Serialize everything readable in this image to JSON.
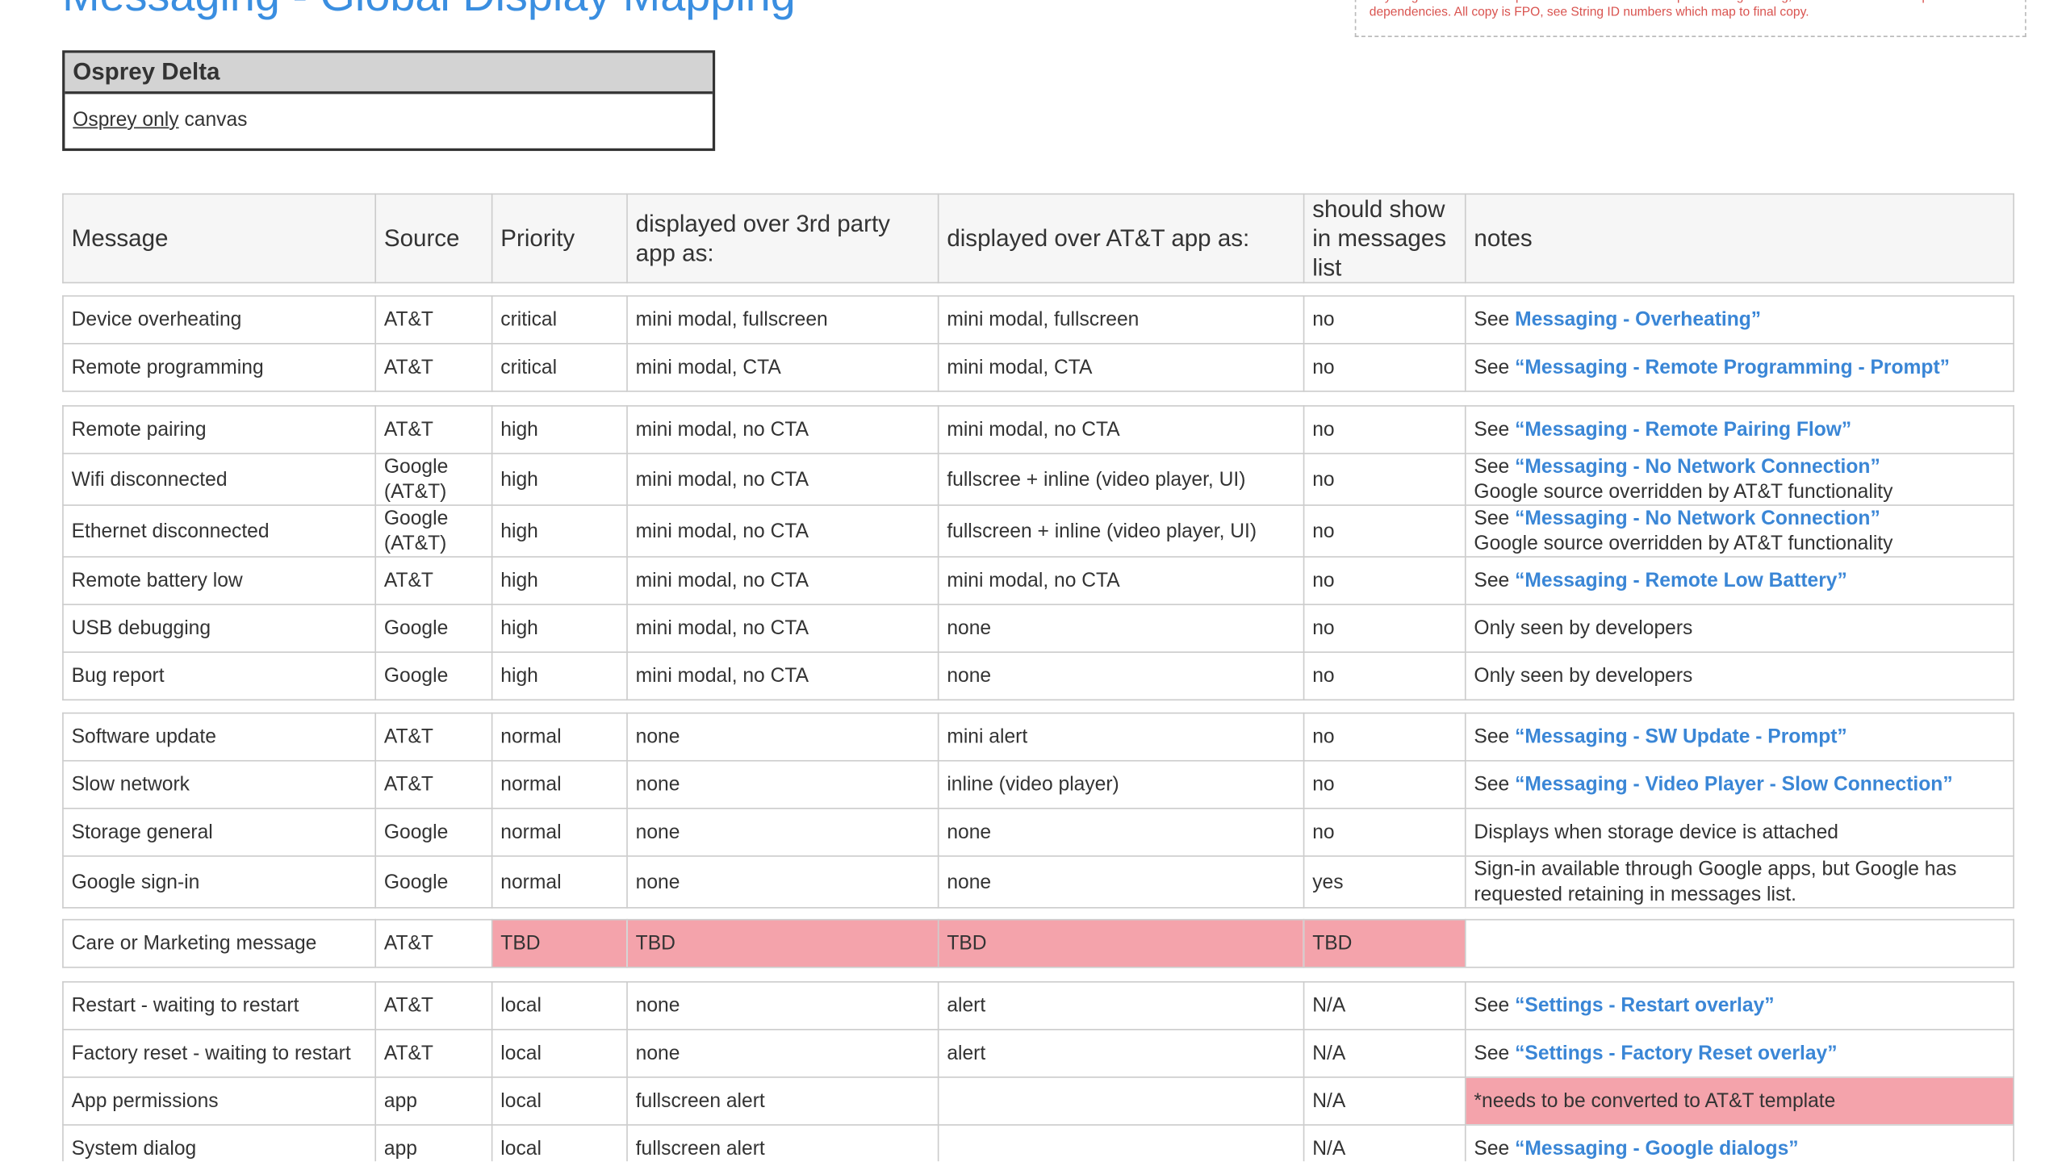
{
  "header": {
    "title": "Messaging - Global Display Mapping",
    "note": "Anything noted in RED requires further discussion with product/engineering, is covered in a future sprint or has dependencies. All copy is FPO, see String ID numbers which map to final copy."
  },
  "delta": {
    "title": "Osprey Delta",
    "underlined": "Osprey only",
    "rest": "canvas"
  },
  "table": {
    "columns": [
      "Message",
      "Source",
      "Priority",
      "displayed over 3rd party app as:",
      "displayed over AT&T app as:",
      "should show in messages list",
      "notes"
    ],
    "highlight_color": "#f4a3ab",
    "groups": [
      [
        {
          "cells": [
            "Device overheating",
            "AT&T",
            "critical",
            "mini modal, fullscreen",
            "mini modal, fullscreen",
            "no"
          ],
          "note": {
            "prefix": "See",
            "link": "Messaging - Overheating”"
          }
        },
        {
          "cells": [
            "Remote programming",
            "AT&T",
            "critical",
            "mini modal, CTA",
            "mini modal, CTA",
            "no"
          ],
          "note": {
            "prefix": "See",
            "link": "“Messaging - Remote Programming - Prompt”"
          }
        }
      ],
      [
        {
          "cells": [
            "Remote pairing",
            "AT&T",
            "high",
            "mini modal, no CTA",
            "mini modal, no CTA",
            "no"
          ],
          "note": {
            "prefix": "See",
            "link": "“Messaging - Remote Pairing Flow”"
          }
        },
        {
          "cells": [
            "Wifi disconnected",
            "Google (AT&T)",
            "high",
            "mini modal, no CTA",
            "fullscree + inline (video player, UI)",
            "no"
          ],
          "note": {
            "prefix": "See",
            "link": "“Messaging - No Network Connection”",
            "line2": "Google source overridden by AT&T functionality"
          }
        },
        {
          "cells": [
            "Ethernet disconnected",
            "Google (AT&T)",
            "high",
            "mini modal, no CTA",
            "fullscreen + inline (video player, UI)",
            "no"
          ],
          "note": {
            "prefix": "See",
            "link": "“Messaging - No Network Connection”",
            "line2": "Google source overridden by AT&T functionality"
          }
        },
        {
          "cells": [
            "Remote battery low",
            "AT&T",
            "high",
            "mini modal, no CTA",
            "mini modal, no CTA",
            "no"
          ],
          "note": {
            "prefix": "See",
            "link": "“Messaging - Remote Low Battery”"
          }
        },
        {
          "cells": [
            "USB debugging",
            "Google",
            "high",
            "mini modal, no CTA",
            "none",
            "no"
          ],
          "note": {
            "text": "Only seen by developers"
          }
        },
        {
          "cells": [
            "Bug report",
            "Google",
            "high",
            "mini modal, no CTA",
            "none",
            "no"
          ],
          "note": {
            "text": "Only seen by developers"
          }
        }
      ],
      [
        {
          "cells": [
            "Software update",
            "AT&T",
            "normal",
            "none",
            "mini alert",
            "no"
          ],
          "note": {
            "prefix": "See",
            "link": "“Messaging - SW Update - Prompt”"
          }
        },
        {
          "cells": [
            "Slow network",
            "AT&T",
            "normal",
            "none",
            "inline (video player)",
            "no"
          ],
          "note": {
            "prefix": "See",
            "link": "“Messaging - Video Player - Slow Connection”"
          }
        },
        {
          "cells": [
            "Storage general",
            "Google",
            "normal",
            "none",
            "none",
            "no"
          ],
          "note": {
            "text": "Displays when storage device is attached"
          }
        },
        {
          "cells": [
            "Google sign-in",
            "Google",
            "normal",
            "none",
            "none",
            "yes"
          ],
          "note": {
            "text": "Sign-in available through Google apps, but Google has requested retaining in messages list."
          }
        }
      ],
      [
        {
          "cells": [
            "Care or Marketing message",
            "AT&T",
            "TBD",
            "TBD",
            "TBD",
            "TBD"
          ],
          "highlight": [
            2,
            3,
            4,
            5
          ]
        }
      ],
      [
        {
          "cells": [
            "Restart - waiting to restart",
            "AT&T",
            "local",
            "none",
            "alert",
            "N/A"
          ],
          "note": {
            "prefix": "See",
            "link": "“Settings - Restart overlay”"
          }
        },
        {
          "cells": [
            "Factory reset - waiting to restart",
            "AT&T",
            "local",
            "none",
            "alert",
            "N/A"
          ],
          "note": {
            "prefix": "See",
            "link": "“Settings - Factory Reset overlay”"
          }
        },
        {
          "cells": [
            "App permissions",
            "app",
            "local",
            "fullscreen alert",
            null,
            "N/A"
          ],
          "note": {
            "text": "*needs to be converted to AT&T template"
          },
          "highlight": [
            6
          ]
        },
        {
          "cells": [
            "System dialog",
            "app",
            "local",
            "fullscreen alert",
            null,
            "N/A"
          ],
          "note": {
            "prefix": "See",
            "link": "“Messaging - Google dialogs”"
          }
        }
      ]
    ]
  }
}
